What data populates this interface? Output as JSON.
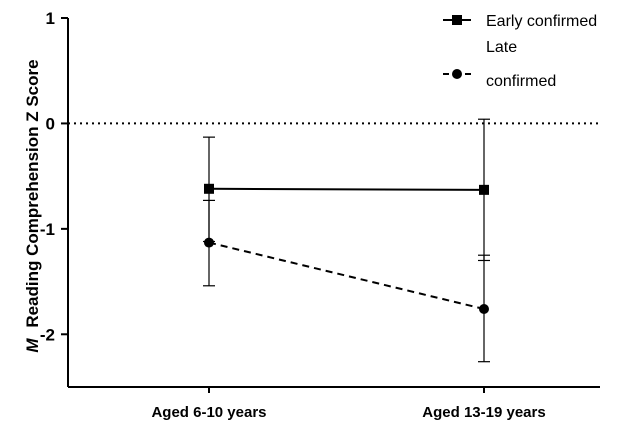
{
  "chart_data": {
    "type": "line",
    "categories": [
      "Aged 6-10 years",
      "Aged 13-19 years"
    ],
    "ylabel_prefix": "M",
    "ylabel": "Reading Comprehension Z Score",
    "ylim": [
      -2.5,
      1
    ],
    "yticks": [
      1,
      0,
      -1,
      -2
    ],
    "reference_line": 0,
    "series": [
      {
        "name": "Early confirmed",
        "marker": "square",
        "line_style": "solid",
        "values": [
          -0.62,
          -0.63
        ],
        "error_low": [
          -1.12,
          -1.3
        ],
        "error_high": [
          -0.13,
          0.04
        ]
      },
      {
        "name": "Late confirmed",
        "name_lines": [
          "Late",
          "confirmed"
        ],
        "marker": "circle",
        "line_style": "dashed",
        "values": [
          -1.13,
          -1.76
        ],
        "error_low": [
          -1.54,
          -2.26
        ],
        "error_high": [
          -0.73,
          -1.25
        ]
      }
    ],
    "legend": "top-right",
    "grid": false
  }
}
